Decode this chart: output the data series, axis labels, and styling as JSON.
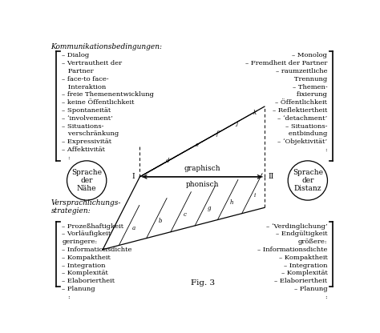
{
  "fig_label": "Fig. 3",
  "bg_color": "#ffffff",
  "header_label": "Kommunikationsbedingungen:",
  "left_circle_text": "Sprache\nder\nNähe",
  "right_circle_text": "Sprache\nder\nDistanz",
  "versprachlichungs_label": "Versprachlichungs-\nstrategien:",
  "graphisch": "graphisch",
  "phonisch": "phonisch",
  "label_I": "I",
  "label_II": "II",
  "left_top_items": [
    "– Dialog",
    "– Vertrautheit der",
    "   Partner",
    "– face-to face-",
    "   Interaktion",
    "– freie Themenentwicklung",
    "– keine Öffentlichkeit",
    "– Spontaneität",
    "– ‘involvement’",
    "– Situations-",
    "   verschränkung",
    "– Expressivität",
    "– Affektivität",
    "   :"
  ],
  "right_top_items": [
    "– Monolog",
    "– Fremdheit der Partner",
    "– raumzeitliche",
    "   Trennung",
    "– Themen-",
    "   fixierung",
    "– Öffentlichkeit",
    "– Reflektiertheit",
    "– ‘detachment’",
    "– Situations-",
    "   entbindung",
    "– ‘Objektivität’",
    "   :"
  ],
  "left_bottom_items": [
    "– Prozeßhaftigkeit",
    "– Vorläufigkeit",
    "geringere:",
    "– Informationsdichte",
    "– Kompaktheit",
    "– Integration",
    "– Komplexität",
    "– Elaboriertheit",
    "– Planung",
    "   :"
  ],
  "right_bottom_items": [
    "– ‘Verdinglichung’",
    "– Endgültigkeit",
    "größere:",
    "– Informationsdichte",
    "– Kompaktheit",
    "– Integration",
    "– Komplexität",
    "– Elaboriertheit",
    "– Planung",
    "   :"
  ]
}
